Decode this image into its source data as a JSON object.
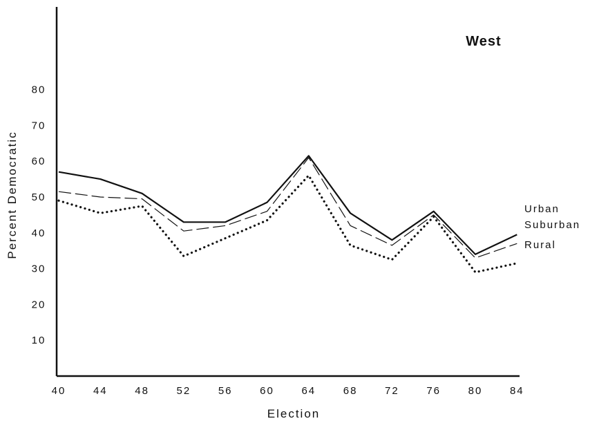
{
  "chart_data": {
    "type": "line",
    "title": "West",
    "xlabel": "Election",
    "ylabel": "Percent Democratic",
    "x": [
      "40",
      "44",
      "48",
      "52",
      "56",
      "60",
      "64",
      "68",
      "72",
      "76",
      "80",
      "84"
    ],
    "yticks": [
      "10",
      "20",
      "30",
      "40",
      "50",
      "60",
      "70",
      "80"
    ],
    "ylim": [
      0,
      90
    ],
    "grid": false,
    "series": [
      {
        "name": "Urban",
        "style": "solid",
        "values": [
          57,
          55,
          51,
          43,
          43,
          48.5,
          61.5,
          45.5,
          38,
          46,
          34,
          39.5
        ]
      },
      {
        "name": "Suburban",
        "style": "dashed",
        "values": [
          51.5,
          50,
          49.5,
          40.5,
          42,
          46,
          61,
          42,
          36.5,
          45,
          33,
          37
        ]
      },
      {
        "name": "Rural",
        "style": "dotted",
        "values": [
          49,
          45.5,
          47.5,
          33.5,
          38.5,
          43.5,
          56,
          36.5,
          32.5,
          44.5,
          29,
          31.5
        ]
      }
    ]
  }
}
